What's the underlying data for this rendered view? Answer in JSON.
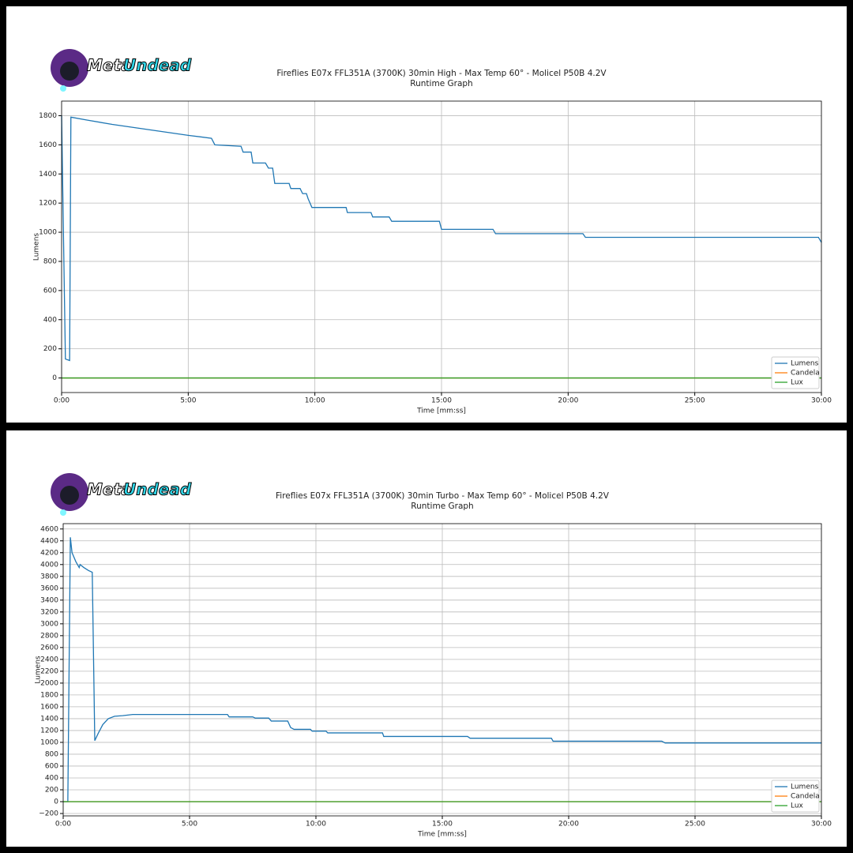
{
  "chart_data": [
    {
      "type": "line",
      "logo": [
        "Meta",
        "Undead"
      ],
      "title": "Fireflies E07x FFL351A (3700K) 30min High - Max Temp 60° - Molicel P50B 4.2V",
      "subtitle": "Runtime Graph",
      "xlabel": "Time [mm:ss]",
      "ylabel": "Lumens",
      "xlim": [
        0,
        1800
      ],
      "xticks": [
        {
          "value": 0,
          "label": "0:00"
        },
        {
          "value": 300,
          "label": "5:00"
        },
        {
          "value": 600,
          "label": "10:00"
        },
        {
          "value": 900,
          "label": "15:00"
        },
        {
          "value": 1200,
          "label": "20:00"
        },
        {
          "value": 1500,
          "label": "25:00"
        },
        {
          "value": 1800,
          "label": "30:00"
        }
      ],
      "ylim": [
        -100,
        1900
      ],
      "yticks": [
        0,
        200,
        400,
        600,
        800,
        1000,
        1200,
        1400,
        1600,
        1800
      ],
      "grid": true,
      "legend": "lower right",
      "series": [
        {
          "name": "Lumens",
          "color": "#1f77b4",
          "x": [
            0,
            9,
            19,
            22,
            60,
            120,
            180,
            240,
            300,
            355,
            363,
            425,
            430,
            449,
            453,
            483,
            490,
            500,
            505,
            539,
            543,
            565,
            571,
            580,
            584,
            593,
            674,
            677,
            733,
            737,
            776,
            782,
            895,
            900,
            1022,
            1028,
            1235,
            1241,
            1793,
            1800
          ],
          "values": [
            1800,
            130,
            120,
            1790,
            1770,
            1740,
            1715,
            1690,
            1665,
            1645,
            1600,
            1590,
            1550,
            1550,
            1475,
            1475,
            1440,
            1440,
            1335,
            1335,
            1300,
            1300,
            1265,
            1265,
            1230,
            1170,
            1170,
            1135,
            1135,
            1105,
            1105,
            1075,
            1075,
            1020,
            1020,
            990,
            990,
            965,
            965,
            930
          ]
        },
        {
          "name": "Candela",
          "color": "#ff7f0e",
          "x": [
            0,
            1800
          ],
          "values": [
            0,
            0
          ]
        },
        {
          "name": "Lux",
          "color": "#2ca02c",
          "x": [
            0,
            1800
          ],
          "values": [
            0,
            0
          ]
        }
      ]
    },
    {
      "type": "line",
      "logo": [
        "Meta",
        "Undead"
      ],
      "title": "Fireflies E07x FFL351A (3700K) 30min Turbo  - Max Temp 60° - Molicel P50B 4.2V",
      "subtitle": "Runtime Graph",
      "xlabel": "Time [mm:ss]",
      "ylabel": "Lumens",
      "xlim": [
        0,
        1800
      ],
      "xticks": [
        {
          "value": 0,
          "label": "0:00"
        },
        {
          "value": 300,
          "label": "5:00"
        },
        {
          "value": 600,
          "label": "10:00"
        },
        {
          "value": 900,
          "label": "15:00"
        },
        {
          "value": 1200,
          "label": "20:00"
        },
        {
          "value": 1500,
          "label": "25:00"
        },
        {
          "value": 1800,
          "label": "30:00"
        }
      ],
      "ylim": [
        -240,
        4690
      ],
      "yticks": [
        {
          "value": -200,
          "label": "−200"
        },
        0,
        200,
        400,
        600,
        800,
        1000,
        1200,
        1400,
        1600,
        1800,
        2000,
        2200,
        2400,
        2600,
        2800,
        3000,
        3200,
        3400,
        3600,
        3800,
        4000,
        4200,
        4400,
        4600
      ],
      "grid": true,
      "legend": "lower right",
      "series": [
        {
          "name": "Lumens",
          "color": "#1f77b4",
          "x": [
            0,
            11,
            17,
            21,
            30,
            38,
            40,
            49,
            60,
            69,
            75,
            83,
            94,
            107,
            122,
            141,
            165,
            390,
            394,
            450,
            456,
            488,
            494,
            533,
            540,
            548,
            587,
            591,
            624,
            628,
            758,
            761,
            960,
            966,
            1159,
            1163,
            1421,
            1429,
            1800
          ],
          "values": [
            0,
            0,
            4460,
            4200,
            4050,
            3950,
            4000,
            3950,
            3900,
            3870,
            1030,
            1150,
            1300,
            1400,
            1440,
            1450,
            1470,
            1470,
            1430,
            1430,
            1410,
            1410,
            1360,
            1360,
            1250,
            1220,
            1220,
            1190,
            1190,
            1160,
            1160,
            1100,
            1100,
            1070,
            1070,
            1020,
            1020,
            990,
            990
          ]
        },
        {
          "name": "Candela",
          "color": "#ff7f0e",
          "x": [
            0,
            1800
          ],
          "values": [
            0,
            0
          ]
        },
        {
          "name": "Lux",
          "color": "#2ca02c",
          "x": [
            0,
            1800
          ],
          "values": [
            0,
            0
          ]
        }
      ]
    }
  ]
}
